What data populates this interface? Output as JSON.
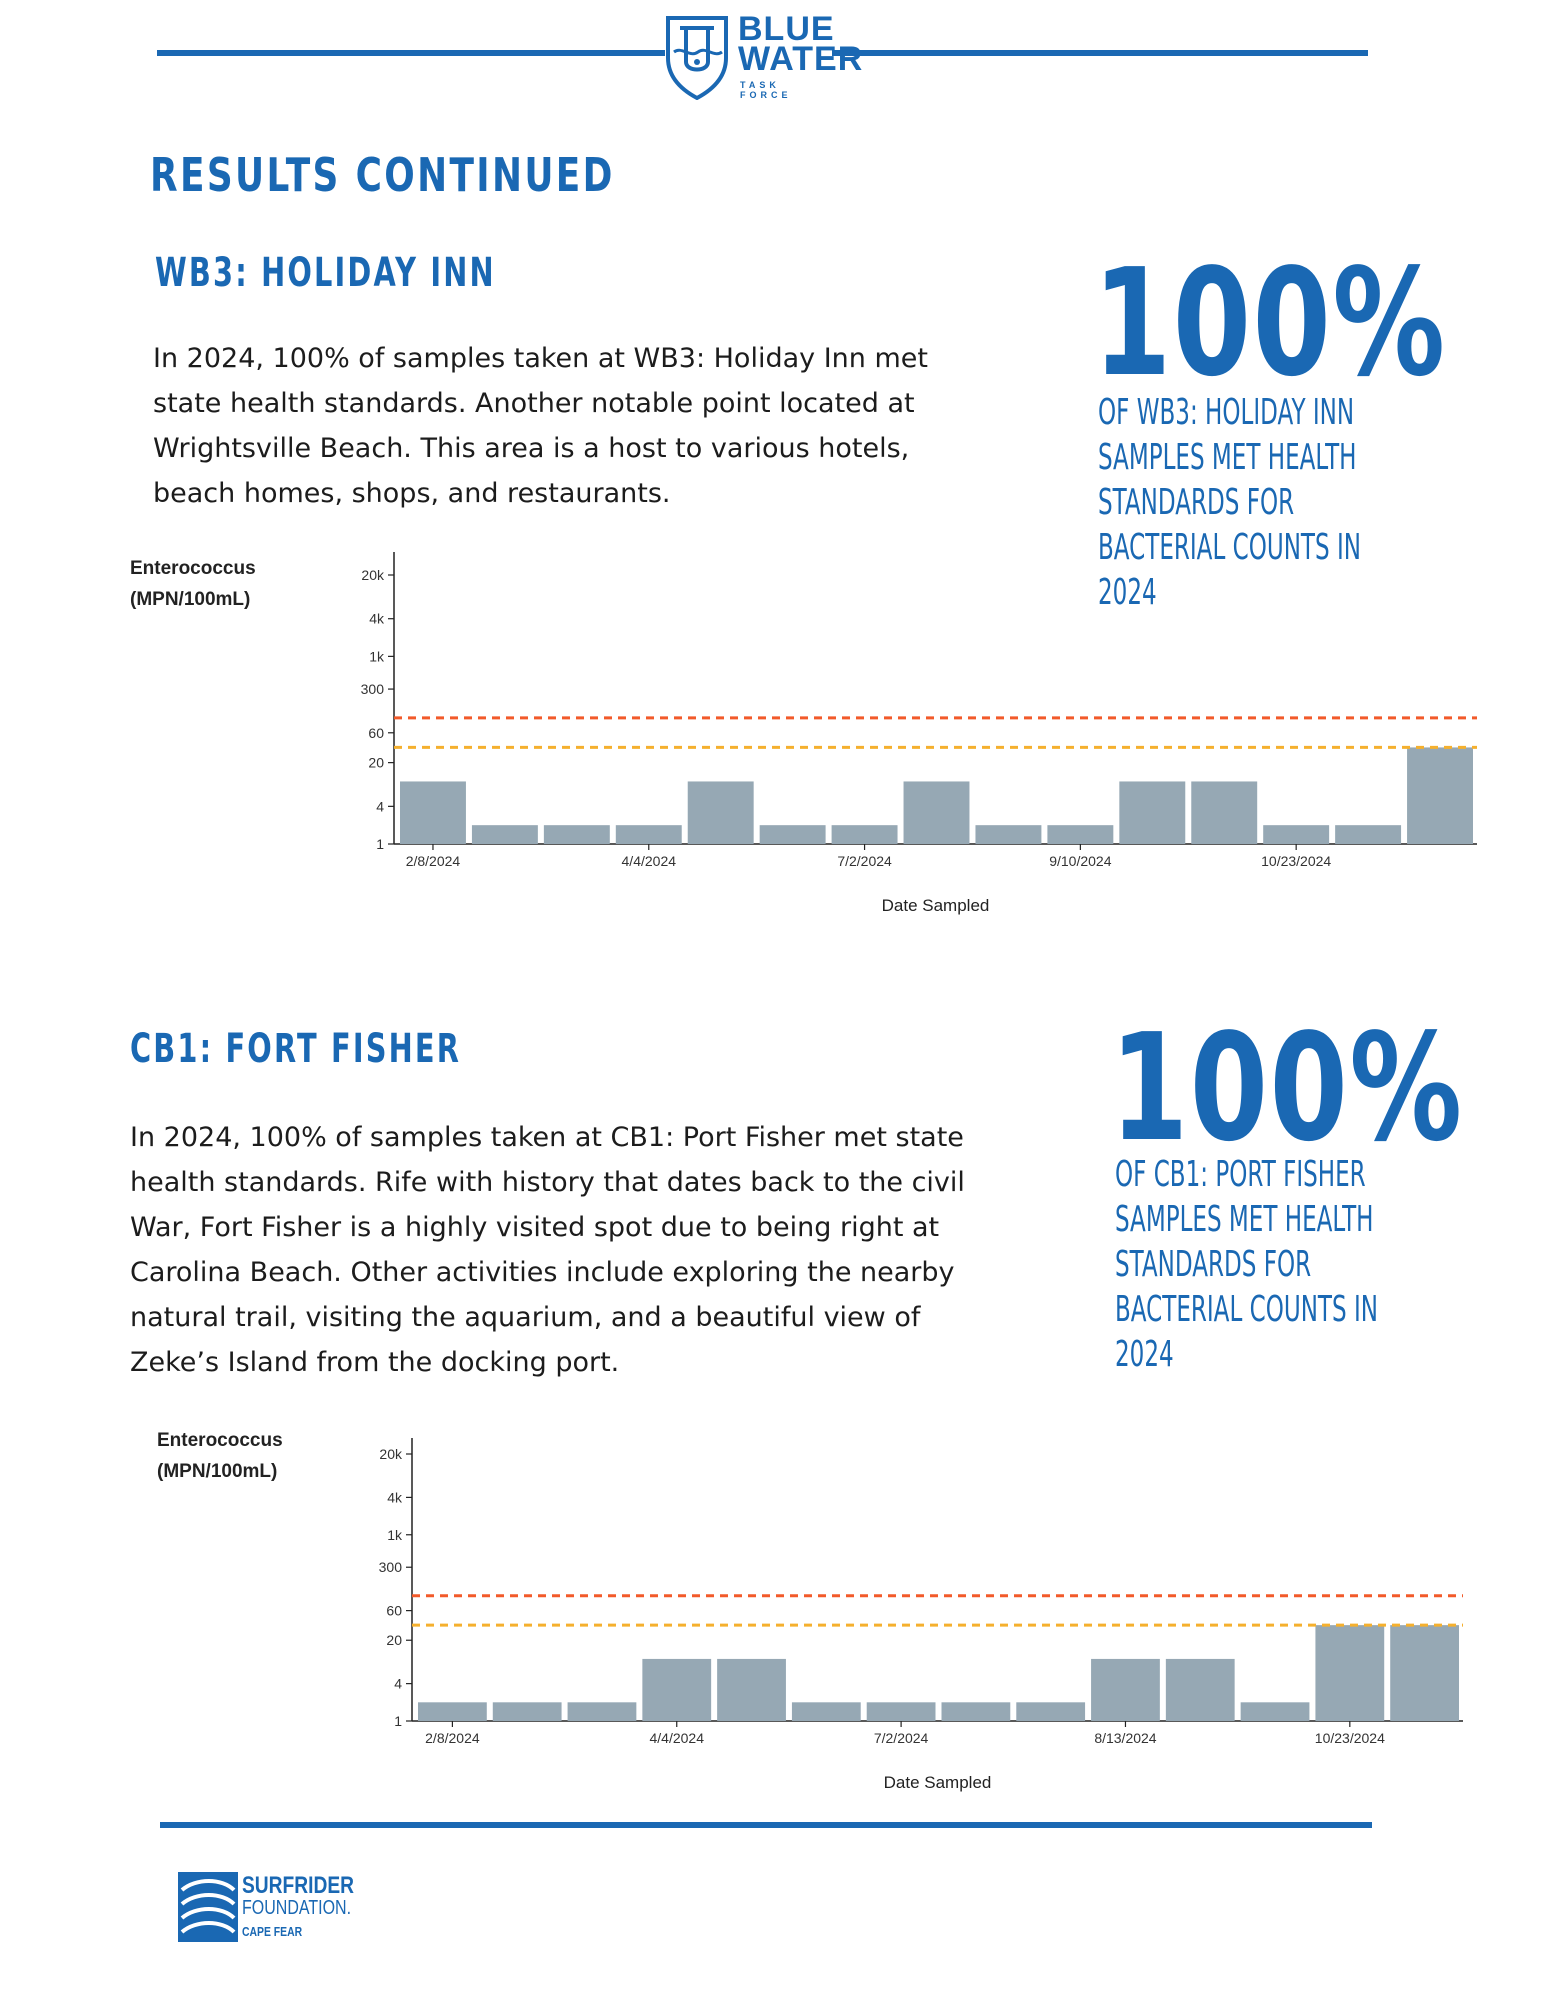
{
  "header": {
    "logo_line1": "BLUE",
    "logo_line2": "WATER",
    "logo_line3": "TASK FORCE",
    "rule_color": "#1a68b3"
  },
  "page_title": "RESULTS CONTINUED",
  "sections": [
    {
      "title": "WB3: HOLIDAY INN",
      "body": "In 2024, 100% of samples taken at WB3: Holiday Inn met state health standards. Another notable point located at Wrightsville Beach. This area is a host to various hotels, beach homes, shops, and restaurants.",
      "stat_value": "100%",
      "stat_caption": "of WB3: Holiday Inn samples met health standards for bacterial counts in 2024"
    },
    {
      "title": "CB1: FORT FISHER",
      "body": "In 2024, 100% of samples taken at CB1: Port Fisher met state health standards. Rife with history that dates back to the civil War, Fort Fisher is a highly visited spot due to being right at Carolina Beach. Other activities include exploring the nearby natural trail, visiting the aquarium, and a beautiful view of Zeke’s Island from the docking port.",
      "stat_value": "100%",
      "stat_caption": "of CB1: Port Fisher samples met health standards for bacterial counts in 2024"
    }
  ],
  "chart_data": [
    {
      "type": "bar",
      "ylabel_line1": "Enterococcus",
      "ylabel_line2": "(MPN/100mL)",
      "xlabel": "Date Sampled",
      "y_scale": "log",
      "y_ticks": [
        "20k",
        "4k",
        "1k",
        "300",
        "60",
        "20",
        "4",
        "1"
      ],
      "y_tick_values": [
        20000,
        4000,
        1000,
        300,
        60,
        20,
        4,
        1
      ],
      "x_tick_labels": [
        "2/8/2024",
        "4/4/2024",
        "7/2/2024",
        "9/10/2024",
        "10/23/2024"
      ],
      "x_tick_bar_index": [
        0,
        3,
        6,
        9,
        12
      ],
      "values": [
        10,
        2,
        2,
        2,
        10,
        2,
        2,
        10,
        2,
        2,
        10,
        10,
        2,
        2,
        35
      ],
      "reference_lines": [
        {
          "value": 104,
          "color": "#f25a2a"
        },
        {
          "value": 35,
          "color": "#f5b02e"
        }
      ],
      "bar_color": "#96a8b4"
    },
    {
      "type": "bar",
      "ylabel_line1": "Enterococcus",
      "ylabel_line2": "(MPN/100mL)",
      "xlabel": "Date Sampled",
      "y_scale": "log",
      "y_ticks": [
        "20k",
        "4k",
        "1k",
        "300",
        "60",
        "20",
        "4",
        "1"
      ],
      "y_tick_values": [
        20000,
        4000,
        1000,
        300,
        60,
        20,
        4,
        1
      ],
      "x_tick_labels": [
        "2/8/2024",
        "4/4/2024",
        "7/2/2024",
        "8/13/2024",
        "10/23/2024"
      ],
      "x_tick_bar_index": [
        0,
        3,
        6,
        9,
        12
      ],
      "values": [
        2,
        2,
        2,
        10,
        10,
        2,
        2,
        2,
        2,
        10,
        10,
        2,
        35,
        35
      ],
      "reference_lines": [
        {
          "value": 104,
          "color": "#f25a2a"
        },
        {
          "value": 35,
          "color": "#f5b02e"
        }
      ],
      "bar_color": "#96a8b4"
    }
  ],
  "footer": {
    "logo_line1": "SURFRIDER",
    "logo_line2": "FOUNDATION.",
    "logo_line3": "CAPE FEAR"
  }
}
